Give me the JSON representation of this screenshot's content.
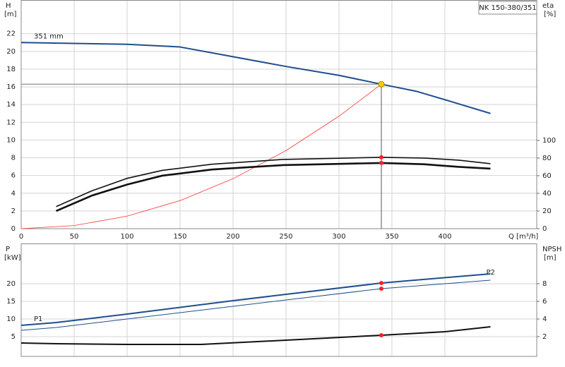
{
  "chart_data": [
    {
      "type": "line",
      "title": "NK 150-380/351",
      "y_label": "H",
      "y_unit": "[m]",
      "y2_label": "eta",
      "y2_unit": "[%]",
      "x_label": "Q [m³/h]",
      "xlim": [
        0,
        486.7
      ],
      "xticks": [
        0,
        50,
        100,
        150,
        200,
        250,
        300,
        350,
        400
      ],
      "ylim": [
        0,
        25.8
      ],
      "yticks": [
        0,
        2,
        4,
        6,
        8,
        10,
        12,
        14,
        16,
        18,
        20,
        22
      ],
      "y2lim": [
        0,
        259
      ],
      "y2ticks": [
        0,
        20,
        40,
        60,
        80,
        100
      ],
      "grid": true,
      "series": [
        {
          "name": "351 mm",
          "color": "#1f4e8c",
          "line_width": 2,
          "x": [
            0,
            50,
            100,
            150,
            200,
            250,
            300,
            340,
            373,
            407,
            443
          ],
          "values": [
            21.0,
            20.9,
            20.8,
            20.5,
            19.4,
            18.3,
            17.3,
            16.3,
            15.5,
            14.3,
            13.0
          ]
        },
        {
          "color": "#ff3333",
          "line_width": 0.8,
          "x": [
            0,
            50,
            100,
            150,
            200,
            250,
            300,
            340
          ],
          "values": [
            0,
            0.35,
            1.41,
            3.17,
            5.64,
            8.81,
            12.69,
            16.3
          ]
        },
        {
          "color": "#111111",
          "line_width": 1.6,
          "axis": "y2",
          "x": [
            33,
            67,
            100,
            133,
            180,
            247,
            340,
            380,
            413,
            443
          ],
          "values": [
            25,
            43,
            57,
            66,
            73,
            78.4,
            80.8,
            80,
            77.6,
            73.6
          ]
        },
        {
          "color": "#111111",
          "line_width": 2.6,
          "axis": "y2",
          "x": [
            33,
            67,
            100,
            133,
            180,
            247,
            340,
            380,
            413,
            443
          ],
          "values": [
            20,
            37.6,
            50,
            60,
            67,
            72,
            74.4,
            73,
            70,
            68
          ]
        }
      ],
      "markers": [
        {
          "x": 340,
          "y": 16.3,
          "color": "#ffcc00",
          "crosshair": true
        },
        {
          "x": 340,
          "y": 80.8,
          "color": "#ff2020",
          "axis": "y2"
        },
        {
          "x": 340,
          "y": 74.4,
          "color": "#ff2020",
          "axis": "y2"
        }
      ]
    },
    {
      "type": "line",
      "y_label": "P",
      "y_unit": "[kW]",
      "y2_label": "NPSH",
      "y2_unit": "[m]",
      "xlim": [
        0,
        486.7
      ],
      "xticks": [
        0,
        50,
        100,
        150,
        200,
        250,
        300,
        350,
        400
      ],
      "ylim": [
        -0.6,
        31.4
      ],
      "yticks": [
        5,
        10,
        15,
        20
      ],
      "y2lim": [
        -0.24,
        12.56
      ],
      "y2ticks": [
        2,
        4,
        6,
        8
      ],
      "grid": true,
      "series": [
        {
          "name": "P1",
          "color": "#1f4e8c",
          "line_width": 2,
          "x": [
            0,
            33,
            100,
            200,
            340,
            443
          ],
          "values": [
            8.2,
            9.0,
            11.4,
            15.2,
            20.2,
            22.8
          ]
        },
        {
          "name": "P2",
          "color": "#1f4e8c",
          "line_width": 1,
          "x": [
            0,
            33,
            100,
            200,
            340,
            443
          ],
          "values": [
            6.8,
            7.6,
            10,
            13.6,
            18.6,
            21
          ]
        },
        {
          "color": "#111111",
          "line_width": 2,
          "axis": "y2",
          "x": [
            0,
            33,
            100,
            170,
            250,
            340,
            400,
            443
          ],
          "values": [
            1.28,
            1.2,
            1.12,
            1.12,
            1.6,
            2.16,
            2.56,
            3.12
          ]
        }
      ],
      "markers": [
        {
          "x": 340,
          "y": 20.2,
          "color": "#ff2020"
        },
        {
          "x": 340,
          "y": 18.6,
          "color": "#ff2020"
        },
        {
          "x": 340,
          "y": 2.16,
          "color": "#ff2020",
          "axis": "y2"
        }
      ]
    }
  ]
}
